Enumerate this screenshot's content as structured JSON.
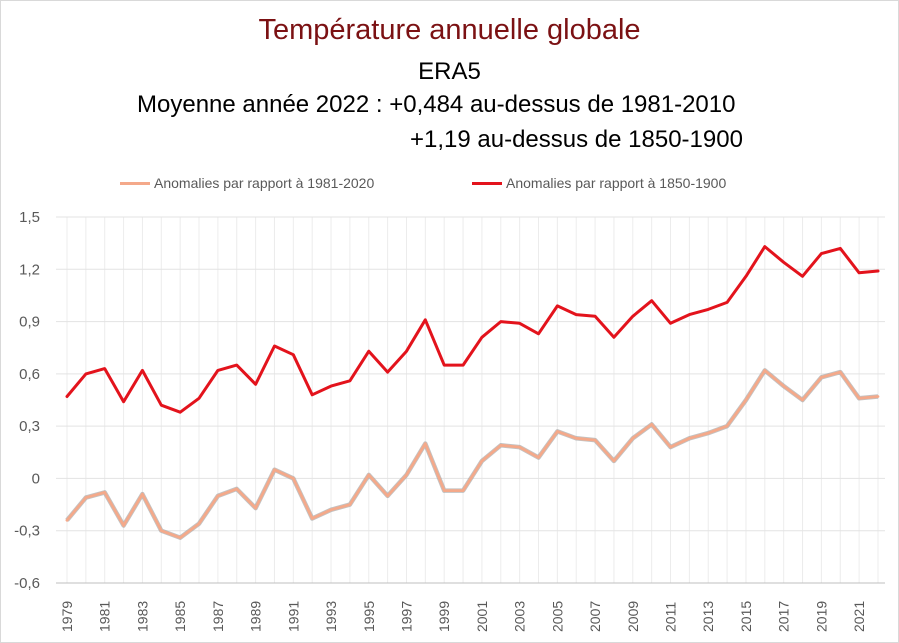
{
  "chart_data": {
    "type": "line",
    "title": "Température annuelle globale",
    "subtitle": "ERA5",
    "annotations": [
      "Moyenne année 2022 : +0,484 au-dessus de 1981-2010",
      "+1,19 au-dessus de 1850-1900"
    ],
    "x": [
      1979,
      1980,
      1981,
      1982,
      1983,
      1984,
      1985,
      1986,
      1987,
      1988,
      1989,
      1990,
      1991,
      1992,
      1993,
      1994,
      1995,
      1996,
      1997,
      1998,
      1999,
      2000,
      2001,
      2002,
      2003,
      2004,
      2005,
      2006,
      2007,
      2008,
      2009,
      2010,
      2011,
      2012,
      2013,
      2014,
      2015,
      2016,
      2017,
      2018,
      2019,
      2020,
      2021,
      2022
    ],
    "x_tick_labels": [
      "1979",
      "1981",
      "1983",
      "1985",
      "1987",
      "1989",
      "1991",
      "1993",
      "1995",
      "1997",
      "1999",
      "2001",
      "2003",
      "2005",
      "2007",
      "2009",
      "2011",
      "2013",
      "2015",
      "2017",
      "2019",
      "2021"
    ],
    "y_tick_labels": [
      "-0,6",
      "-0,3",
      "0",
      "0,3",
      "0,6",
      "0,9",
      "1,2",
      "1,5"
    ],
    "ylim": [
      -0.6,
      1.5
    ],
    "y_ticks": [
      -0.6,
      -0.3,
      0,
      0.3,
      0.6,
      0.9,
      1.2,
      1.5
    ],
    "grid": true,
    "legend_position": "top",
    "series": [
      {
        "name": "Anomalies par rapport à 1981-2020",
        "color": "#f4a98a",
        "values": [
          -0.24,
          -0.11,
          -0.08,
          -0.27,
          -0.09,
          -0.3,
          -0.34,
          -0.26,
          -0.1,
          -0.06,
          -0.17,
          0.05,
          0.0,
          -0.23,
          -0.18,
          -0.15,
          0.02,
          -0.1,
          0.02,
          0.2,
          -0.07,
          -0.07,
          0.1,
          0.19,
          0.18,
          0.12,
          0.27,
          0.23,
          0.22,
          0.1,
          0.23,
          0.31,
          0.18,
          0.23,
          0.26,
          0.3,
          0.45,
          0.62,
          0.53,
          0.45,
          0.58,
          0.61,
          0.46,
          0.47
        ]
      },
      {
        "name": "Anomalies par rapport à 1850-1900",
        "color": "#e3131c",
        "values": [
          0.47,
          0.6,
          0.63,
          0.44,
          0.62,
          0.42,
          0.38,
          0.46,
          0.62,
          0.65,
          0.54,
          0.76,
          0.71,
          0.48,
          0.53,
          0.56,
          0.73,
          0.61,
          0.73,
          0.91,
          0.65,
          0.65,
          0.81,
          0.9,
          0.89,
          0.83,
          0.99,
          0.94,
          0.93,
          0.81,
          0.93,
          1.02,
          0.89,
          0.94,
          0.97,
          1.01,
          1.16,
          1.33,
          1.24,
          1.16,
          1.29,
          1.32,
          1.18,
          1.19
        ]
      }
    ]
  }
}
